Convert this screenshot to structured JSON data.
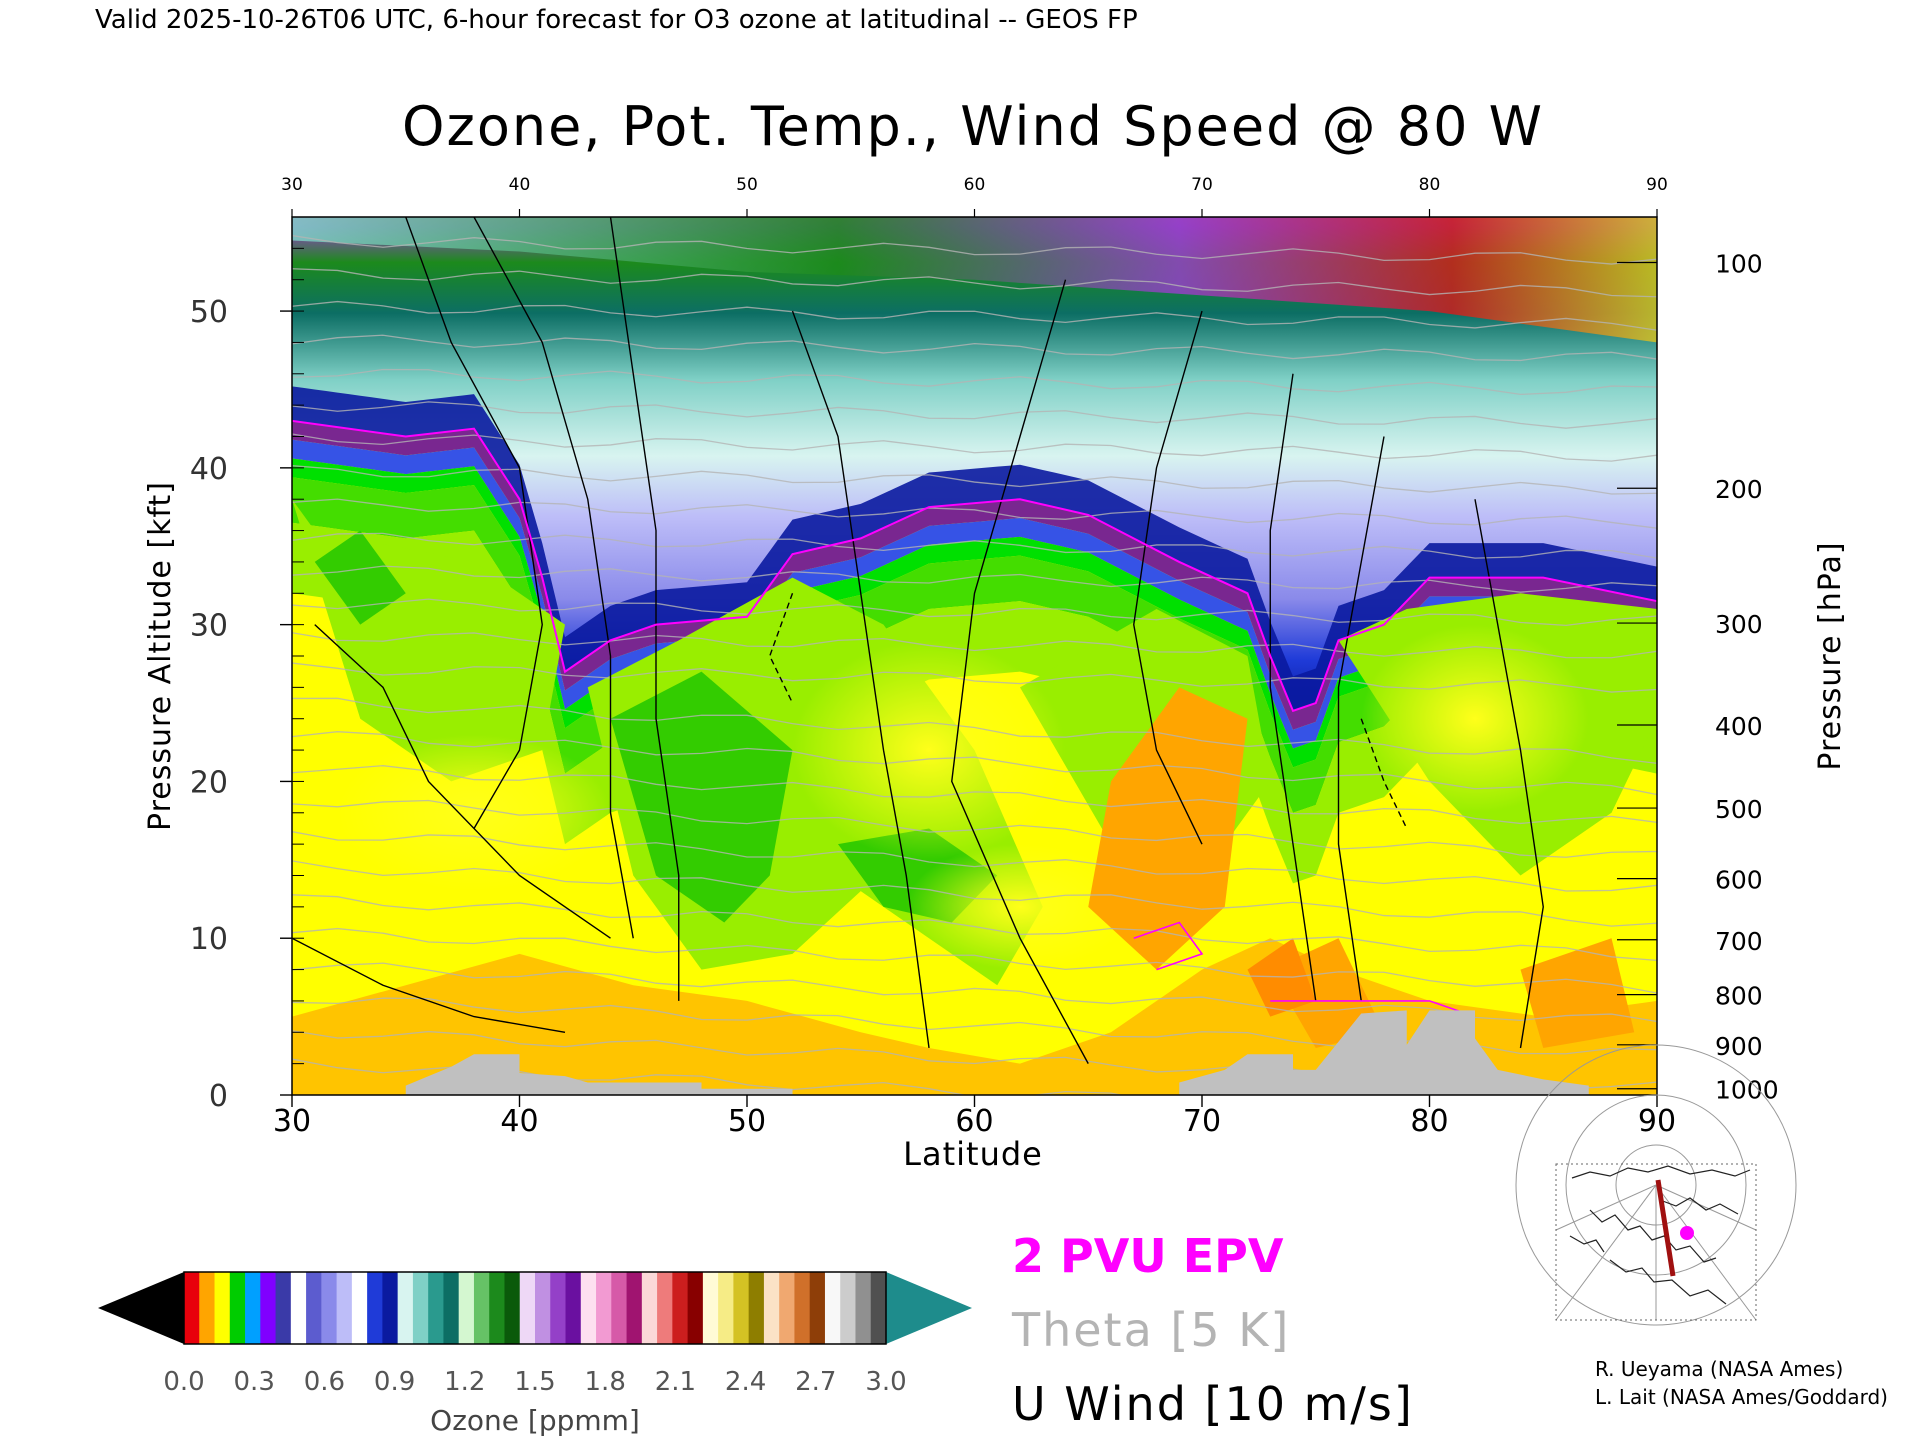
{
  "header": {
    "valid_line": "Valid 2025-10-26T06 UTC, 6-hour forecast for O3 ozone at latitudinal -- GEOS FP",
    "title": "Ozone, Pot. Temp., Wind Speed @ 80 W"
  },
  "chart_data": {
    "type": "heatmap",
    "title": "Ozone, Pot. Temp., Wind Speed @ 80 W",
    "xlabel": "Latitude",
    "ylabel": "Pressure Altitude [kft]",
    "y2label": "Pressure [hPa]",
    "xlim": [
      30,
      90
    ],
    "ylim": [
      0,
      56
    ],
    "x_ticks": [
      "30",
      "40",
      "50",
      "60",
      "70",
      "80",
      "90"
    ],
    "x_tick_values": [
      30,
      40,
      50,
      60,
      70,
      80,
      90
    ],
    "y_ticks": [
      "0",
      "10",
      "20",
      "30",
      "40",
      "50"
    ],
    "y_tick_values": [
      0,
      10,
      20,
      30,
      40,
      50
    ],
    "pressure_ticks": [
      {
        "label": "100",
        "kft": 53.1
      },
      {
        "label": "200",
        "kft": 38.7
      },
      {
        "label": "300",
        "kft": 30.1
      },
      {
        "label": "400",
        "kft": 23.6
      },
      {
        "label": "500",
        "kft": 18.3
      },
      {
        "label": "600",
        "kft": 13.8
      },
      {
        "label": "700",
        "kft": 9.9
      },
      {
        "label": "800",
        "kft": 6.4
      },
      {
        "label": "900",
        "kft": 3.2
      },
      {
        "label": "1000",
        "kft": 0.4
      }
    ],
    "tropopause_2pvu_kft": [
      {
        "lat": 30,
        "kft": 43.0
      },
      {
        "lat": 35,
        "kft": 42.0
      },
      {
        "lat": 38,
        "kft": 42.5
      },
      {
        "lat": 40,
        "kft": 38.0
      },
      {
        "lat": 41,
        "kft": 33.0
      },
      {
        "lat": 42,
        "kft": 27.0
      },
      {
        "lat": 44,
        "kft": 29.0
      },
      {
        "lat": 46,
        "kft": 30.0
      },
      {
        "lat": 50,
        "kft": 30.5
      },
      {
        "lat": 52,
        "kft": 34.5
      },
      {
        "lat": 55,
        "kft": 35.5
      },
      {
        "lat": 58,
        "kft": 37.5
      },
      {
        "lat": 62,
        "kft": 38.0
      },
      {
        "lat": 65,
        "kft": 37.0
      },
      {
        "lat": 69,
        "kft": 34.0
      },
      {
        "lat": 72,
        "kft": 32.0
      },
      {
        "lat": 73,
        "kft": 28.0
      },
      {
        "lat": 74,
        "kft": 24.5
      },
      {
        "lat": 75,
        "kft": 25.0
      },
      {
        "lat": 76,
        "kft": 29.0
      },
      {
        "lat": 78,
        "kft": 30.0
      },
      {
        "lat": 80,
        "kft": 33.0
      },
      {
        "lat": 85,
        "kft": 33.0
      },
      {
        "lat": 90,
        "kft": 31.5
      }
    ],
    "ozone_colorbar": {
      "label": "Ozone [ppmm]",
      "ticks": [
        "0.0",
        "0.3",
        "0.6",
        "0.9",
        "1.2",
        "1.5",
        "1.8",
        "2.1",
        "2.4",
        "2.7",
        "3.0"
      ],
      "colors": [
        "#e8000b",
        "#ffa500",
        "#ffff00",
        "#00cc00",
        "#00a0ff",
        "#8000ff",
        "#3a3aa8",
        "#ffffff",
        "#5c5ccf",
        "#8a8aea",
        "#bdbdf8",
        "#ffffff",
        "#1f3bd8",
        "#0a1aa0",
        "#d8f4f0",
        "#7fd0c6",
        "#2a9a8e",
        "#0c6e64",
        "#d4f7d0",
        "#66c266",
        "#1c8a1c",
        "#0a5a0a",
        "#eed8f6",
        "#c090e2",
        "#9440c8",
        "#6a10a0",
        "#fde0f0",
        "#f29ad2",
        "#d65aa8",
        "#a01470",
        "#fbd8d8",
        "#ee7b7b",
        "#cc1e1e",
        "#880000",
        "#fffbd6",
        "#f6ec86",
        "#d4c224",
        "#8e7e00",
        "#fbe2c6",
        "#f0a870",
        "#d0702a",
        "#8e3e08",
        "#f8f8f8",
        "#cccccc",
        "#909090",
        "#505050"
      ]
    },
    "legend": [
      {
        "name": "2 PVU EPV",
        "color": "#ff00ff"
      },
      {
        "name": "Theta [5 K]",
        "color": "#b4b4b4"
      },
      {
        "name": "U Wind [10 m/s]",
        "color": "#000000"
      }
    ]
  },
  "inset_map": {
    "section_line": "80 W",
    "marker_color": "#ff00ff"
  },
  "credits": {
    "line1": "R. Ueyama (NASA Ames)",
    "line2": "L. Lait (NASA Ames/Goddard)"
  }
}
